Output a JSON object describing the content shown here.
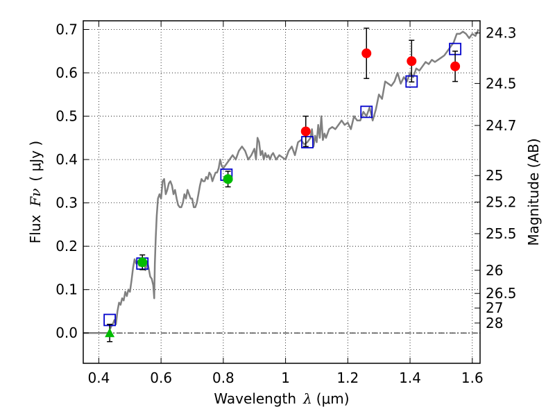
{
  "chart_data": {
    "type": "scatter",
    "title": "",
    "xlabel": "Wavelength",
    "xlabel_symbol": "λ",
    "xlabel_unit": "(μm)",
    "ylabel": "Flux",
    "ylabel_symbol": "Fν",
    "ylabel_unit": "( μJy )",
    "y2label": "Magnitude (AB)",
    "xlim": [
      0.35,
      1.625
    ],
    "ylim": [
      -0.07,
      0.72
    ],
    "grid": true,
    "grid_style": "dotted",
    "x_ticks": [
      0.4,
      0.6,
      0.8,
      1.0,
      1.2,
      1.4,
      1.6
    ],
    "x_tick_labels": [
      "0.4",
      "0.6",
      "0.8",
      "1",
      "1.2",
      "1.4",
      "1.6"
    ],
    "y_ticks": [
      0.0,
      0.1,
      0.2,
      0.3,
      0.4,
      0.5,
      0.6,
      0.7
    ],
    "y_tick_labels": [
      "0.0",
      "0.1",
      "0.2",
      "0.3",
      "0.4",
      "0.5",
      "0.6",
      "0.7"
    ],
    "y2_ticks": [
      "24.3",
      "24.5",
      "24.7",
      "25",
      "25.2",
      "25.5",
      "26",
      "26.5",
      "27",
      "28"
    ],
    "series": [
      {
        "type": "line",
        "color": "#808080",
        "x": [
          0.35,
          0.4,
          0.43,
          0.44,
          0.445,
          0.45,
          0.455,
          0.46,
          0.465,
          0.47,
          0.475,
          0.48,
          0.485,
          0.49,
          0.495,
          0.5,
          0.505,
          0.51,
          0.515,
          0.52,
          0.525,
          0.53,
          0.535,
          0.54,
          0.545,
          0.55,
          0.555,
          0.56,
          0.565,
          0.57,
          0.575,
          0.578,
          0.58,
          0.583,
          0.586,
          0.59,
          0.595,
          0.6,
          0.605,
          0.61,
          0.615,
          0.62,
          0.625,
          0.63,
          0.635,
          0.64,
          0.645,
          0.65,
          0.655,
          0.66,
          0.665,
          0.67,
          0.675,
          0.68,
          0.685,
          0.69,
          0.695,
          0.7,
          0.705,
          0.71,
          0.715,
          0.72,
          0.725,
          0.73,
          0.735,
          0.74,
          0.745,
          0.75,
          0.755,
          0.76,
          0.765,
          0.77,
          0.775,
          0.78,
          0.785,
          0.79,
          0.795,
          0.8,
          0.81,
          0.82,
          0.83,
          0.84,
          0.85,
          0.86,
          0.87,
          0.88,
          0.89,
          0.9,
          0.905,
          0.91,
          0.915,
          0.92,
          0.925,
          0.93,
          0.935,
          0.94,
          0.945,
          0.95,
          0.955,
          0.96,
          0.97,
          0.98,
          0.99,
          1.0,
          1.01,
          1.02,
          1.03,
          1.04,
          1.05,
          1.06,
          1.07,
          1.08,
          1.085,
          1.09,
          1.095,
          1.1,
          1.105,
          1.11,
          1.115,
          1.12,
          1.125,
          1.13,
          1.14,
          1.15,
          1.16,
          1.17,
          1.18,
          1.19,
          1.2,
          1.21,
          1.22,
          1.23,
          1.24,
          1.25,
          1.26,
          1.27,
          1.28,
          1.29,
          1.3,
          1.31,
          1.32,
          1.33,
          1.34,
          1.35,
          1.36,
          1.37,
          1.38,
          1.39,
          1.4,
          1.41,
          1.42,
          1.43,
          1.44,
          1.45,
          1.46,
          1.47,
          1.48,
          1.49,
          1.5,
          1.51,
          1.52,
          1.53,
          1.54,
          1.55,
          1.56,
          1.57,
          1.58,
          1.59,
          1.6,
          1.61,
          1.62
        ],
        "y": [
          0.0,
          0.0,
          0.0,
          0.015,
          0.02,
          0.03,
          0.02,
          0.05,
          0.07,
          0.065,
          0.08,
          0.075,
          0.095,
          0.085,
          0.1,
          0.095,
          0.12,
          0.15,
          0.17,
          0.16,
          0.165,
          0.155,
          0.16,
          0.155,
          0.17,
          0.145,
          0.165,
          0.15,
          0.13,
          0.125,
          0.11,
          0.08,
          0.16,
          0.22,
          0.27,
          0.31,
          0.32,
          0.31,
          0.35,
          0.355,
          0.32,
          0.33,
          0.345,
          0.35,
          0.34,
          0.32,
          0.33,
          0.31,
          0.295,
          0.29,
          0.29,
          0.3,
          0.32,
          0.31,
          0.33,
          0.32,
          0.31,
          0.31,
          0.29,
          0.29,
          0.3,
          0.32,
          0.34,
          0.355,
          0.35,
          0.35,
          0.36,
          0.355,
          0.37,
          0.365,
          0.35,
          0.36,
          0.37,
          0.37,
          0.38,
          0.4,
          0.385,
          0.38,
          0.39,
          0.4,
          0.41,
          0.4,
          0.42,
          0.43,
          0.42,
          0.4,
          0.41,
          0.425,
          0.4,
          0.45,
          0.44,
          0.41,
          0.42,
          0.4,
          0.415,
          0.405,
          0.41,
          0.4,
          0.41,
          0.415,
          0.4,
          0.41,
          0.405,
          0.4,
          0.42,
          0.43,
          0.41,
          0.44,
          0.445,
          0.435,
          0.44,
          0.45,
          0.47,
          0.43,
          0.455,
          0.44,
          0.48,
          0.45,
          0.5,
          0.445,
          0.46,
          0.45,
          0.47,
          0.475,
          0.47,
          0.48,
          0.49,
          0.48,
          0.485,
          0.47,
          0.5,
          0.49,
          0.49,
          0.51,
          0.5,
          0.52,
          0.49,
          0.515,
          0.55,
          0.54,
          0.58,
          0.575,
          0.57,
          0.58,
          0.6,
          0.575,
          0.59,
          0.58,
          0.6,
          0.59,
          0.61,
          0.605,
          0.615,
          0.625,
          0.62,
          0.63,
          0.625,
          0.63,
          0.635,
          0.64,
          0.65,
          0.66,
          0.67,
          0.69,
          0.69,
          0.695,
          0.69,
          0.68,
          0.69,
          0.685,
          0.7
        ]
      },
      {
        "type": "scatter",
        "marker": "square-open",
        "color": "#0000cc",
        "x": [
          0.435,
          0.54,
          0.81,
          1.07,
          1.26,
          1.405,
          1.545
        ],
        "y": [
          0.03,
          0.16,
          0.365,
          0.44,
          0.51,
          0.58,
          0.655
        ]
      },
      {
        "type": "scatter",
        "marker": "circle",
        "color": "#ff0000",
        "x": [
          1.065,
          1.26,
          1.405,
          1.545
        ],
        "y": [
          0.465,
          0.645,
          0.627,
          0.615
        ],
        "yerr": [
          0.035,
          0.058,
          0.048,
          0.035
        ]
      },
      {
        "type": "scatter",
        "marker": "circle",
        "color": "#00bb00",
        "x": [
          0.54,
          0.815
        ],
        "y": [
          0.163,
          0.355
        ],
        "yerr": [
          0.017,
          0.018
        ]
      },
      {
        "type": "scatter",
        "marker": "triangle-up",
        "color": "#00bb00",
        "x": [
          0.435
        ],
        "y": [
          0.0
        ],
        "yerr": [
          0.02
        ]
      }
    ]
  }
}
